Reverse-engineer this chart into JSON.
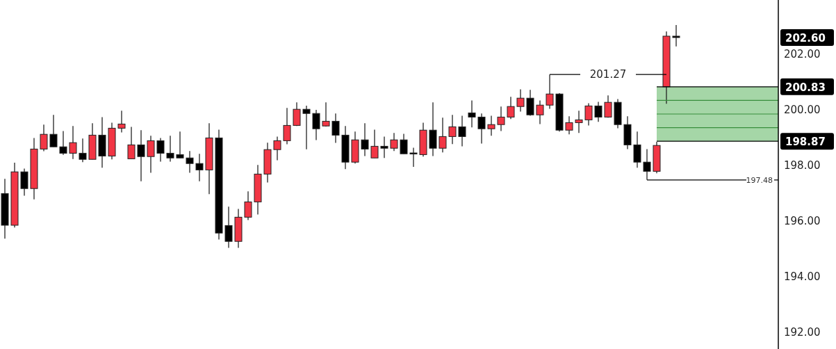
{
  "chart_data": {
    "type": "candlestick",
    "categories": [
      null,
      null,
      null,
      null,
      null,
      null,
      null,
      null,
      null,
      null,
      null,
      null,
      null,
      null,
      null,
      null,
      null,
      null,
      null,
      null,
      null,
      null,
      null,
      null,
      null,
      null,
      null,
      null,
      null,
      null,
      null,
      null,
      null,
      null,
      null,
      null,
      null,
      null,
      null,
      null,
      null,
      null,
      null,
      null,
      null,
      null,
      null,
      null,
      null,
      null,
      null,
      null,
      null,
      null,
      null,
      null,
      null,
      null,
      null,
      null,
      null,
      null,
      null,
      null,
      null,
      null,
      null,
      null,
      null,
      null,
      null,
      null,
      null,
      null,
      null,
      null,
      null,
      null,
      null,
      null
    ],
    "ohlc": [
      [
        196.99,
        197.52,
        195.37,
        195.85
      ],
      [
        195.85,
        198.1,
        195.77,
        197.77
      ],
      [
        197.77,
        197.89,
        196.91,
        197.17
      ],
      [
        197.17,
        198.99,
        196.78,
        198.59
      ],
      [
        198.59,
        199.47,
        198.51,
        199.12
      ],
      [
        199.12,
        199.82,
        198.67,
        198.67
      ],
      [
        198.67,
        199.24,
        198.38,
        198.44
      ],
      [
        198.44,
        199.42,
        198.23,
        198.82
      ],
      [
        198.44,
        198.97,
        198.12,
        198.22
      ],
      [
        198.22,
        199.52,
        198.22,
        199.09
      ],
      [
        199.09,
        199.74,
        197.92,
        198.34
      ],
      [
        198.34,
        199.54,
        198.22,
        199.34
      ],
      [
        199.34,
        199.97,
        199.19,
        199.49
      ],
      [
        198.24,
        199.39,
        198.24,
        198.74
      ],
      [
        198.74,
        199.27,
        197.43,
        198.32
      ],
      [
        198.32,
        199.07,
        197.74,
        198.89
      ],
      [
        198.89,
        198.99,
        198.14,
        198.44
      ],
      [
        198.44,
        199.07,
        198.14,
        198.27
      ],
      [
        198.39,
        199.22,
        198.27,
        198.27
      ],
      [
        198.27,
        198.52,
        197.74,
        198.07
      ],
      [
        198.07,
        198.42,
        197.43,
        197.84
      ],
      [
        197.84,
        199.52,
        196.97,
        198.99
      ],
      [
        198.99,
        199.29,
        195.34,
        195.57
      ],
      [
        195.84,
        196.52,
        195.04,
        195.27
      ],
      [
        195.27,
        196.44,
        195.04,
        196.14
      ],
      [
        196.14,
        197.07,
        196.04,
        196.69
      ],
      [
        196.69,
        198.02,
        196.24,
        197.69
      ],
      [
        197.69,
        198.82,
        197.39,
        198.57
      ],
      [
        198.57,
        199.04,
        198.19,
        198.89
      ],
      [
        198.89,
        200.07,
        198.76,
        199.44
      ],
      [
        199.44,
        200.27,
        199.42,
        200.02
      ],
      [
        200.02,
        200.15,
        198.58,
        199.87
      ],
      [
        199.87,
        200.0,
        198.91,
        199.32
      ],
      [
        199.42,
        200.27,
        199.4,
        199.59
      ],
      [
        199.59,
        199.87,
        198.81,
        199.09
      ],
      [
        199.09,
        199.42,
        197.87,
        198.12
      ],
      [
        198.12,
        199.22,
        198.07,
        198.92
      ],
      [
        198.92,
        199.52,
        198.34,
        198.59
      ],
      [
        198.27,
        199.29,
        198.27,
        198.69
      ],
      [
        198.69,
        199.04,
        198.27,
        198.62
      ],
      [
        198.62,
        199.17,
        198.52,
        198.92
      ],
      [
        198.92,
        199.14,
        198.42,
        198.42
      ],
      [
        198.45,
        198.64,
        197.95,
        198.44
      ],
      [
        198.39,
        199.54,
        198.32,
        199.27
      ],
      [
        199.27,
        200.27,
        198.34,
        198.62
      ],
      [
        198.62,
        199.72,
        198.47,
        199.04
      ],
      [
        199.04,
        199.82,
        198.77,
        199.39
      ],
      [
        199.39,
        199.79,
        198.69,
        199.04
      ],
      [
        199.89,
        200.34,
        199.37,
        199.74
      ],
      [
        199.74,
        199.87,
        198.79,
        199.32
      ],
      [
        199.32,
        199.79,
        199.07,
        199.47
      ],
      [
        199.47,
        200.12,
        199.24,
        199.74
      ],
      [
        199.74,
        200.47,
        199.67,
        200.12
      ],
      [
        200.12,
        200.74,
        199.94,
        200.42
      ],
      [
        200.42,
        200.72,
        199.79,
        199.82
      ],
      [
        199.82,
        200.34,
        199.49,
        200.17
      ],
      [
        200.17,
        201.27,
        200.04,
        200.57
      ],
      [
        200.57,
        200.6,
        199.22,
        199.27
      ],
      [
        199.27,
        199.77,
        199.12,
        199.54
      ],
      [
        199.54,
        199.97,
        199.17,
        199.64
      ],
      [
        199.64,
        200.24,
        199.44,
        200.14
      ],
      [
        200.14,
        200.29,
        199.57,
        199.74
      ],
      [
        199.74,
        200.52,
        199.72,
        200.27
      ],
      [
        200.27,
        200.39,
        199.34,
        199.47
      ],
      [
        199.47,
        199.77,
        198.59,
        198.74
      ],
      [
        198.74,
        199.22,
        197.92,
        198.12
      ],
      [
        198.12,
        198.59,
        197.48,
        197.79
      ],
      [
        197.79,
        198.85,
        197.72,
        198.72
      ],
      [
        200.83,
        202.82,
        200.22,
        202.65
      ],
      [
        202.65,
        203.05,
        202.28,
        202.6
      ],
      null,
      null,
      null,
      null,
      null,
      null,
      null,
      null,
      null,
      null
    ],
    "colors": [
      "#000000",
      "#f23645",
      "#000000",
      "#f23645",
      "#f23645",
      "#000000",
      "#000000",
      "#f23645",
      "#000000",
      "#f23645",
      "#000000",
      "#f23645",
      "#f23645",
      "#f23645",
      "#000000",
      "#f23645",
      "#000000",
      "#000000",
      "#000000",
      "#000000",
      "#000000",
      "#f23645",
      "#000000",
      "#000000",
      "#f23645",
      "#f23645",
      "#f23645",
      "#f23645",
      "#f23645",
      "#f23645",
      "#f23645",
      "#000000",
      "#000000",
      "#f23645",
      "#000000",
      "#000000",
      "#f23645",
      "#000000",
      "#f23645",
      "#000000",
      "#f23645",
      "#000000",
      "#000000",
      "#f23645",
      "#000000",
      "#f23645",
      "#f23645",
      "#000000",
      "#000000",
      "#000000",
      "#f23645",
      "#f23645",
      "#f23645",
      "#f23645",
      "#000000",
      "#f23645",
      "#f23645",
      "#000000",
      "#f23645",
      "#f23645",
      "#f23645",
      "#000000",
      "#f23645",
      "#000000",
      "#000000",
      "#000000",
      "#000000",
      "#f23645",
      "#f23645",
      "#000000",
      null,
      null,
      null,
      null,
      null,
      null,
      null,
      null,
      null,
      null
    ],
    "ylim": [
      191.4,
      203.95
    ],
    "yticks": [
      {
        "value": 192,
        "label": "192.00"
      },
      {
        "value": 194,
        "label": "194.00"
      },
      {
        "value": 196,
        "label": "196.00"
      },
      {
        "value": 198,
        "label": "198.00"
      },
      {
        "value": 200,
        "label": "200.00"
      },
      {
        "value": 202,
        "label": "202.00"
      }
    ],
    "tick_labels": "y",
    "grid": false,
    "legend": false,
    "bands": [
      {
        "axis": "y",
        "from": 198.87,
        "to": 200.83,
        "color": "#a5d6a7"
      }
    ],
    "ref_lines": [
      {
        "axis": "y",
        "value": 201.27,
        "label": "201.27",
        "color": "#000000"
      },
      {
        "axis": "y",
        "value": 197.48,
        "label": "197.48",
        "color": "#000000"
      },
      {
        "axis": "y",
        "value": 200.83,
        "label": "200.83",
        "color": "#000000"
      },
      {
        "axis": "y",
        "value": 198.87,
        "label": "198.87",
        "color": "#000000"
      },
      {
        "axis": "y",
        "value": 200.34,
        "color": "#388e3c"
      },
      {
        "axis": "y",
        "value": 199.85,
        "color": "#388e3c"
      },
      {
        "axis": "y",
        "value": 199.36,
        "color": "#388e3c"
      }
    ],
    "annotations": [
      "202.60"
    ]
  }
}
